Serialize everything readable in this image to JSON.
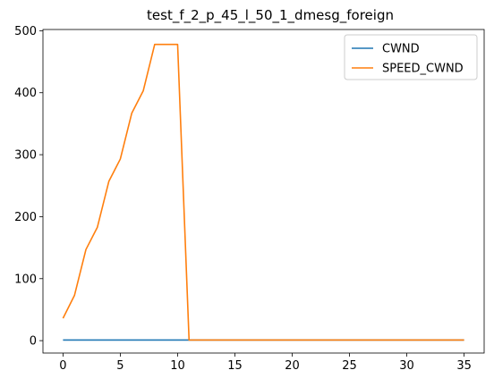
{
  "chart_data": {
    "type": "line",
    "title": "test_f_2_p_45_l_50_1_dmesg_foreign",
    "xlabel": "",
    "ylabel": "",
    "xlim": [
      -1.75,
      36.75
    ],
    "ylim": [
      -20,
      502
    ],
    "xticks": [
      0,
      5,
      10,
      15,
      20,
      25,
      30,
      35
    ],
    "yticks": [
      0,
      100,
      200,
      300,
      400,
      500
    ],
    "grid": false,
    "legend_position": "top-right",
    "series": [
      {
        "name": "CWND",
        "color": "#1f77b4",
        "x": [
          0,
          1,
          2,
          3,
          4,
          5,
          6,
          7,
          8,
          9,
          10,
          11,
          12,
          13,
          14,
          15,
          16,
          17,
          18,
          19,
          20,
          21,
          22,
          23,
          24,
          25,
          26,
          27,
          28,
          29,
          30,
          31,
          32,
          33,
          34,
          35
        ],
        "y": [
          1,
          1,
          1,
          1,
          1,
          1,
          1,
          1,
          1,
          1,
          1,
          1,
          1,
          1,
          1,
          1,
          1,
          1,
          1,
          1,
          1,
          1,
          1,
          1,
          1,
          1,
          1,
          1,
          1,
          1,
          1,
          1,
          1,
          1,
          1,
          1
        ]
      },
      {
        "name": "SPEED_CWND",
        "color": "#ff7f0e",
        "x": [
          0,
          1,
          2,
          3,
          4,
          5,
          6,
          7,
          8,
          9,
          10,
          11,
          12,
          13,
          14,
          15,
          16,
          17,
          18,
          19,
          20,
          21,
          22,
          23,
          24,
          25,
          26,
          27,
          28,
          29,
          30,
          31,
          32,
          33,
          34,
          35
        ],
        "y": [
          36,
          73,
          147,
          183,
          257,
          293,
          367,
          403,
          478,
          478,
          478,
          1,
          1,
          1,
          1,
          1,
          1,
          1,
          1,
          1,
          1,
          1,
          1,
          1,
          1,
          1,
          1,
          1,
          1,
          1,
          1,
          1,
          1,
          1,
          1,
          1
        ]
      }
    ]
  }
}
